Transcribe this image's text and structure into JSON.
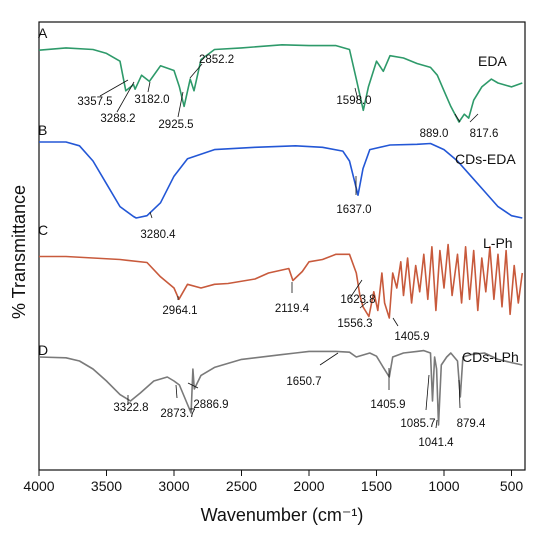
{
  "chart_data": {
    "type": "line",
    "xlabel": "Wavenumber (cm⁻¹)",
    "ylabel": "% Transmittance",
    "xlim": [
      4000,
      400
    ],
    "x_ticks": [
      "4000",
      "3500",
      "3000",
      "2500",
      "2000",
      "1500",
      "1000",
      "500"
    ],
    "x_reversed": true,
    "y_ticks_shown": false,
    "grid": false,
    "series": [
      {
        "panel": "A",
        "name": "EDA",
        "color": "#2e9a6a",
        "points": [
          [
            4000,
            0.92
          ],
          [
            3800,
            0.95
          ],
          [
            3600,
            0.93
          ],
          [
            3500,
            0.88
          ],
          [
            3400,
            0.78
          ],
          [
            3357,
            0.4
          ],
          [
            3300,
            0.48
          ],
          [
            3288,
            0.42
          ],
          [
            3240,
            0.6
          ],
          [
            3182,
            0.52
          ],
          [
            3100,
            0.72
          ],
          [
            3000,
            0.66
          ],
          [
            2960,
            0.45
          ],
          [
            2925,
            0.2
          ],
          [
            2880,
            0.55
          ],
          [
            2852,
            0.4
          ],
          [
            2800,
            0.8
          ],
          [
            2700,
            0.93
          ],
          [
            2500,
            0.95
          ],
          [
            2200,
            0.99
          ],
          [
            2000,
            0.98
          ],
          [
            1800,
            0.98
          ],
          [
            1700,
            0.93
          ],
          [
            1650,
            0.55
          ],
          [
            1598,
            0.15
          ],
          [
            1560,
            0.45
          ],
          [
            1500,
            0.78
          ],
          [
            1450,
            0.65
          ],
          [
            1400,
            0.85
          ],
          [
            1300,
            0.82
          ],
          [
            1200,
            0.75
          ],
          [
            1100,
            0.7
          ],
          [
            1050,
            0.6
          ],
          [
            1000,
            0.4
          ],
          [
            950,
            0.2
          ],
          [
            889,
            0.0
          ],
          [
            850,
            0.1
          ],
          [
            817,
            0.05
          ],
          [
            780,
            0.28
          ],
          [
            720,
            0.45
          ],
          [
            650,
            0.55
          ],
          [
            600,
            0.5
          ],
          [
            500,
            0.45
          ],
          [
            420,
            0.5
          ]
        ],
        "peaks": [
          "3357.5",
          "3288.2",
          "3182.0",
          "2925.5",
          "2852.2",
          "1598.0",
          "889.0",
          "817.6"
        ]
      },
      {
        "panel": "B",
        "name": "CDs-EDA",
        "color": "#2357d6",
        "points": [
          [
            4000,
            1.0
          ],
          [
            3800,
            1.0
          ],
          [
            3700,
            0.95
          ],
          [
            3600,
            0.75
          ],
          [
            3500,
            0.45
          ],
          [
            3400,
            0.15
          ],
          [
            3300,
            0.02
          ],
          [
            3280,
            0.0
          ],
          [
            3200,
            0.03
          ],
          [
            3100,
            0.2
          ],
          [
            3000,
            0.55
          ],
          [
            2900,
            0.78
          ],
          [
            2700,
            0.9
          ],
          [
            2400,
            0.93
          ],
          [
            2100,
            0.95
          ],
          [
            1900,
            0.93
          ],
          [
            1750,
            0.88
          ],
          [
            1700,
            0.75
          ],
          [
            1637,
            0.3
          ],
          [
            1600,
            0.65
          ],
          [
            1550,
            0.9
          ],
          [
            1400,
            0.96
          ],
          [
            1200,
            0.97
          ],
          [
            1100,
            0.98
          ],
          [
            1000,
            0.9
          ],
          [
            900,
            0.75
          ],
          [
            800,
            0.55
          ],
          [
            700,
            0.35
          ],
          [
            600,
            0.15
          ],
          [
            500,
            0.03
          ],
          [
            420,
            0.0
          ]
        ],
        "peaks": [
          "3280.4",
          "1637.0"
        ]
      },
      {
        "panel": "C",
        "name": "L-Ph",
        "color": "#c85a3c",
        "points": [
          [
            4000,
            0.82
          ],
          [
            3800,
            0.82
          ],
          [
            3600,
            0.8
          ],
          [
            3400,
            0.78
          ],
          [
            3200,
            0.74
          ],
          [
            3100,
            0.55
          ],
          [
            3000,
            0.4
          ],
          [
            2964,
            0.25
          ],
          [
            2900,
            0.45
          ],
          [
            2800,
            0.4
          ],
          [
            2700,
            0.45
          ],
          [
            2600,
            0.46
          ],
          [
            2400,
            0.52
          ],
          [
            2300,
            0.6
          ],
          [
            2200,
            0.64
          ],
          [
            2150,
            0.66
          ],
          [
            2119,
            0.5
          ],
          [
            2050,
            0.62
          ],
          [
            2000,
            0.75
          ],
          [
            1900,
            0.78
          ],
          [
            1800,
            0.85
          ],
          [
            1700,
            0.85
          ],
          [
            1650,
            0.6
          ],
          [
            1623,
            0.3
          ],
          [
            1600,
            0.15
          ],
          [
            1556,
            0.02
          ],
          [
            1520,
            0.35
          ],
          [
            1490,
            0.1
          ],
          [
            1460,
            0.6
          ],
          [
            1440,
            0.2
          ],
          [
            1405,
            0.0
          ],
          [
            1380,
            0.6
          ],
          [
            1350,
            0.4
          ],
          [
            1320,
            0.75
          ],
          [
            1300,
            0.3
          ],
          [
            1270,
            0.8
          ],
          [
            1240,
            0.2
          ],
          [
            1210,
            0.7
          ],
          [
            1180,
            0.35
          ],
          [
            1150,
            0.85
          ],
          [
            1120,
            0.25
          ],
          [
            1090,
            0.95
          ],
          [
            1060,
            0.1
          ],
          [
            1030,
            0.9
          ],
          [
            1000,
            0.4
          ],
          [
            970,
            0.98
          ],
          [
            940,
            0.3
          ],
          [
            900,
            0.85
          ],
          [
            870,
            0.2
          ],
          [
            840,
            0.95
          ],
          [
            810,
            0.25
          ],
          [
            780,
            0.9
          ],
          [
            750,
            0.1
          ],
          [
            720,
            0.8
          ],
          [
            690,
            0.35
          ],
          [
            660,
            0.95
          ],
          [
            630,
            0.25
          ],
          [
            600,
            0.85
          ],
          [
            570,
            0.15
          ],
          [
            540,
            0.9
          ],
          [
            510,
            0.05
          ],
          [
            480,
            0.7
          ],
          [
            450,
            0.2
          ],
          [
            420,
            0.6
          ]
        ],
        "peaks": [
          "2964.1",
          "2119.4",
          "1623.8",
          "1556.3",
          "1405.9"
        ]
      },
      {
        "panel": "D",
        "name": "CDs-LPh",
        "color": "#7a7a7a",
        "points": [
          [
            4000,
            0.85
          ],
          [
            3800,
            0.84
          ],
          [
            3700,
            0.8
          ],
          [
            3600,
            0.7
          ],
          [
            3500,
            0.55
          ],
          [
            3400,
            0.38
          ],
          [
            3322,
            0.3
          ],
          [
            3250,
            0.4
          ],
          [
            3150,
            0.55
          ],
          [
            3050,
            0.6
          ],
          [
            3000,
            0.55
          ],
          [
            2960,
            0.5
          ],
          [
            2873,
            0.15
          ],
          [
            2860,
            0.7
          ],
          [
            2850,
            0.45
          ],
          [
            2800,
            0.62
          ],
          [
            2700,
            0.72
          ],
          [
            2500,
            0.82
          ],
          [
            2300,
            0.86
          ],
          [
            2200,
            0.88
          ],
          [
            2100,
            0.9
          ],
          [
            2000,
            0.92
          ],
          [
            1900,
            0.92
          ],
          [
            1800,
            0.92
          ],
          [
            1700,
            0.91
          ],
          [
            1650,
            0.85
          ],
          [
            1550,
            0.9
          ],
          [
            1500,
            0.86
          ],
          [
            1450,
            0.72
          ],
          [
            1405,
            0.6
          ],
          [
            1380,
            0.85
          ],
          [
            1300,
            0.9
          ],
          [
            1200,
            0.92
          ],
          [
            1150,
            0.93
          ],
          [
            1100,
            0.9
          ],
          [
            1085,
            0.3
          ],
          [
            1070,
            0.85
          ],
          [
            1055,
            0.7
          ],
          [
            1041,
            0.0
          ],
          [
            1020,
            0.75
          ],
          [
            980,
            0.85
          ],
          [
            950,
            0.9
          ],
          [
            900,
            0.8
          ],
          [
            879,
            0.35
          ],
          [
            860,
            0.85
          ],
          [
            800,
            0.88
          ],
          [
            700,
            0.9
          ],
          [
            600,
            0.82
          ],
          [
            500,
            0.78
          ],
          [
            420,
            0.75
          ]
        ],
        "peaks": [
          "3322.8",
          "2873.7",
          "2886.9",
          "1650.7",
          "1405.9",
          "1085.7",
          "1041.4",
          "879.4"
        ]
      }
    ]
  }
}
